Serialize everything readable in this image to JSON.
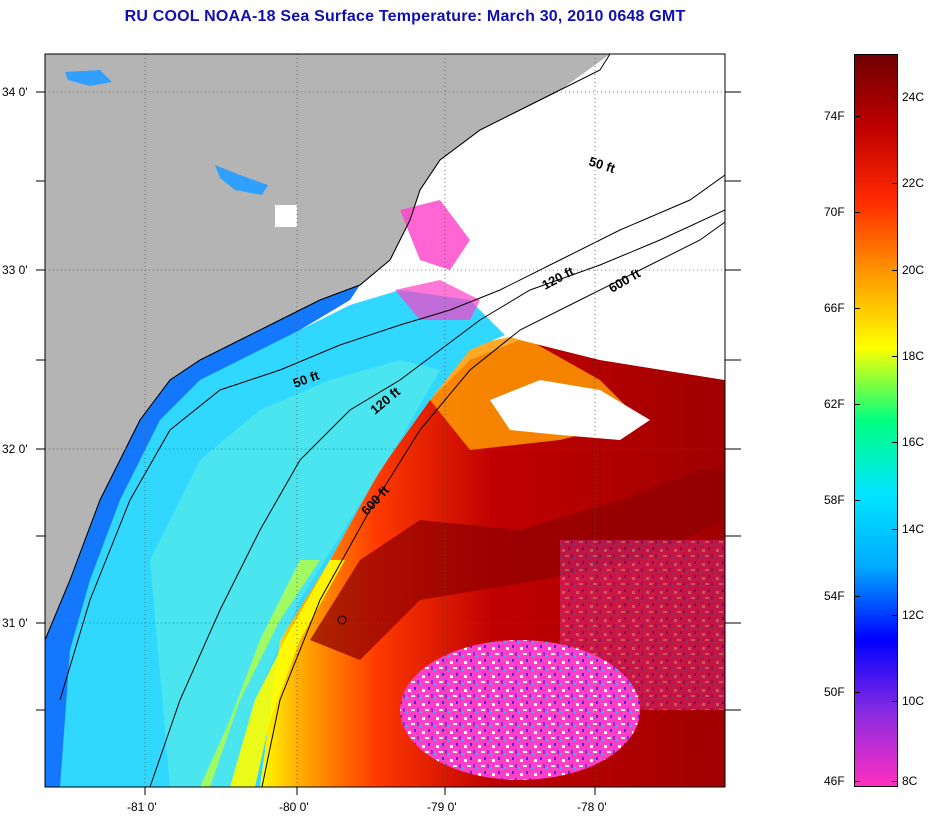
{
  "title": "RU COOL  NOAA-18  Sea Surface Temperature:  March 30, 2010 0648 GMT",
  "map": {
    "lat_labels": [
      "34 0'",
      "33 0'",
      "32 0'",
      "31 0'"
    ],
    "lon_labels": [
      "-81 0'",
      "-80 0'",
      "-79 0'",
      "-78 0'"
    ],
    "contours": [
      "50 ft",
      "120 ft",
      "600 ft",
      "50 ft",
      "120 ft",
      "600 ft"
    ]
  },
  "colorbar": {
    "fahrenheit": [
      "74F",
      "70F",
      "66F",
      "62F",
      "58F",
      "54F",
      "50F",
      "46F"
    ],
    "celsius": [
      "24C",
      "22C",
      "20C",
      "18C",
      "16C",
      "14C",
      "12C",
      "10C",
      "8C"
    ],
    "colors": [
      "#ff2fc0",
      "#8a2be2",
      "#0000ff",
      "#00aaff",
      "#00e5ff",
      "#00ff80",
      "#ffff00",
      "#ff9900",
      "#ff2a00",
      "#c00000",
      "#700000"
    ]
  }
}
